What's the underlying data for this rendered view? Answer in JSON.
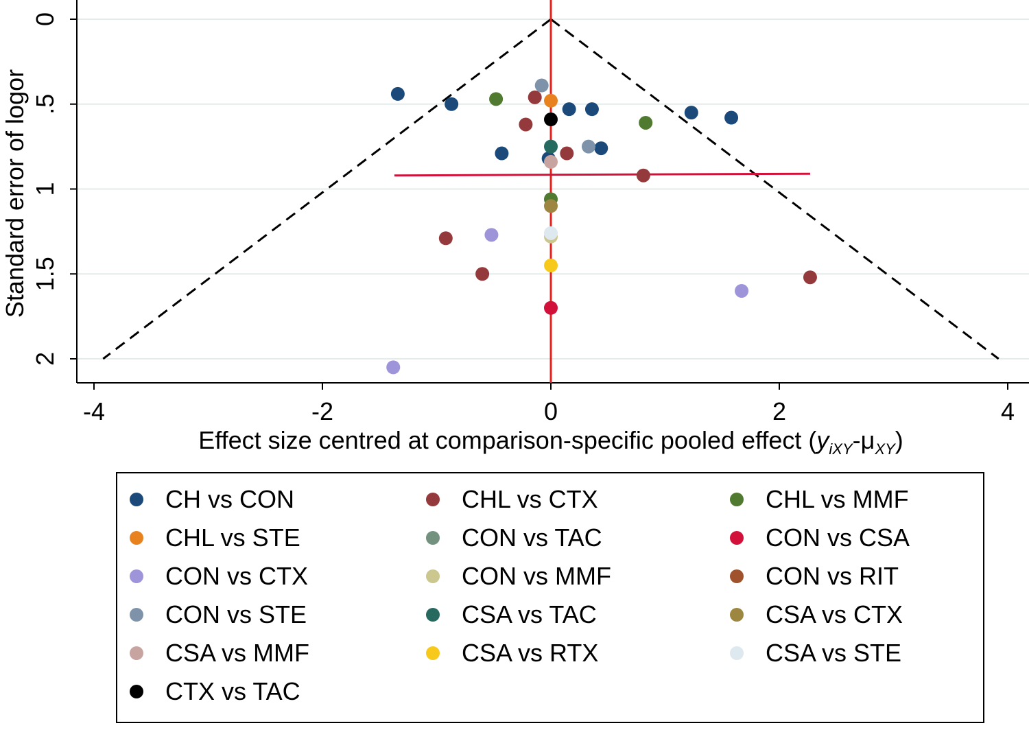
{
  "chart_data": {
    "type": "scatter",
    "subtype": "comparison-adjusted funnel plot",
    "xlabel": "Effect size centred at comparison-specific pooled effect",
    "xlabel_math": {
      "open": " (",
      "y": "y",
      "y_sub": "iXY",
      "dash": "-",
      "mu": "μ",
      "mu_sub": "XY",
      "close": ")"
    },
    "ylabel": "Standard error of logor",
    "xlim": [
      -4.0,
      4.0
    ],
    "ylim": [
      0,
      2.15
    ],
    "y_reversed": true,
    "xticks": [
      -4,
      -2,
      0,
      2,
      4
    ],
    "xtick_labels": [
      "-4",
      "-2",
      "0",
      "2",
      "4"
    ],
    "yticks": [
      0,
      0.5,
      1,
      1.5,
      2
    ],
    "ytick_labels": [
      "0",
      ".5",
      "1",
      "1.5",
      "2"
    ],
    "grid": "horizontal",
    "funnel": {
      "apex": [
        0,
        0
      ],
      "se_max": 2.0,
      "left_x_at_max": -3.92,
      "right_x_at_max": 3.92
    },
    "reference_line_x": 0,
    "regression_line": {
      "x1": -1.37,
      "y1": 0.92,
      "x2": 2.27,
      "y2": 0.91
    },
    "series": [
      {
        "name": "CH vs CON",
        "color": "#1b4a7a",
        "points": [
          [
            -1.34,
            0.44
          ],
          [
            -0.87,
            0.5
          ],
          [
            0.16,
            0.53
          ],
          [
            0.36,
            0.53
          ],
          [
            1.23,
            0.55
          ],
          [
            1.58,
            0.58
          ],
          [
            -0.43,
            0.79
          ],
          [
            0.44,
            0.76
          ],
          [
            -0.02,
            0.82
          ]
        ]
      },
      {
        "name": "CHL vs CTX",
        "color": "#943a3c",
        "points": [
          [
            -0.14,
            0.46
          ],
          [
            -0.22,
            0.62
          ],
          [
            0.14,
            0.79
          ],
          [
            0.81,
            0.92
          ],
          [
            -0.92,
            1.29
          ],
          [
            -0.6,
            1.5
          ],
          [
            2.27,
            1.52
          ]
        ]
      },
      {
        "name": "CHL vs MMF",
        "color": "#507a2f",
        "points": [
          [
            -0.48,
            0.47
          ],
          [
            0.83,
            0.61
          ],
          [
            0.0,
            1.06
          ]
        ]
      },
      {
        "name": "CHL vs STE",
        "color": "#e8821e",
        "points": [
          [
            0.0,
            0.48
          ]
        ]
      },
      {
        "name": "CON vs TAC",
        "color": "#72917f",
        "points": []
      },
      {
        "name": "CON vs CSA",
        "color": "#d2113a",
        "points": [
          [
            0.0,
            1.7
          ]
        ]
      },
      {
        "name": "CON vs CTX",
        "color": "#9d94d9",
        "points": [
          [
            -0.52,
            1.27
          ],
          [
            1.67,
            1.6
          ],
          [
            -1.38,
            2.05
          ]
        ]
      },
      {
        "name": "CON vs MMF",
        "color": "#ccc68f",
        "points": [
          [
            0.0,
            1.28
          ]
        ]
      },
      {
        "name": "CON vs RIT",
        "color": "#a0522d",
        "points": []
      },
      {
        "name": "CON vs STE",
        "color": "#7e93aa",
        "points": [
          [
            -0.08,
            0.39
          ],
          [
            0.33,
            0.75
          ]
        ]
      },
      {
        "name": "CSA vs TAC",
        "color": "#25695f",
        "points": [
          [
            0.0,
            0.75
          ]
        ]
      },
      {
        "name": "CSA vs CTX",
        "color": "#9c8640",
        "points": [
          [
            0.0,
            1.1
          ]
        ]
      },
      {
        "name": "CSA vs MMF",
        "color": "#c8a4a0",
        "points": [
          [
            0.0,
            0.84
          ]
        ]
      },
      {
        "name": "CSA vs RTX",
        "color": "#f7c91b",
        "points": [
          [
            0.0,
            1.45
          ]
        ]
      },
      {
        "name": "CSA vs STE",
        "color": "#dde8ef",
        "points": [
          [
            0.0,
            1.26
          ]
        ]
      },
      {
        "name": "CTX vs TAC",
        "color": "#000000",
        "points": [
          [
            0.0,
            0.59
          ]
        ]
      }
    ]
  }
}
